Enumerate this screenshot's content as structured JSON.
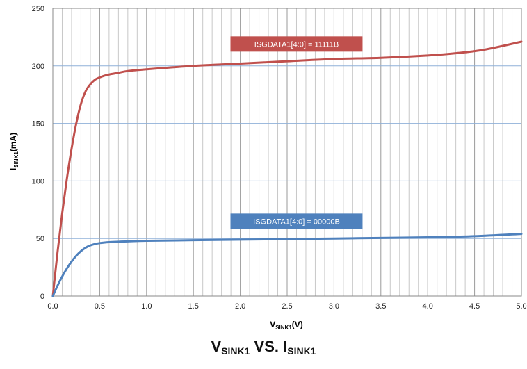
{
  "chart_data": {
    "type": "line",
    "title": {
      "v": "V",
      "v_sub": "SINK1",
      "vs": " VS. I",
      "i_sub": "SINK1"
    },
    "xlabel": {
      "main": "V",
      "sub": "SINK1",
      "unit": "(V)"
    },
    "ylabel": {
      "main": "I",
      "sub": "SINK1",
      "unit": "(mA)"
    },
    "xlim": [
      0,
      5
    ],
    "ylim": [
      0,
      250
    ],
    "x_ticks": [
      "0.0",
      "0.5",
      "1.0",
      "1.5",
      "2.0",
      "2.5",
      "3.0",
      "3.5",
      "4.0",
      "4.5",
      "5.0"
    ],
    "y_ticks": [
      "0",
      "50",
      "100",
      "150",
      "200",
      "250"
    ],
    "grid": true,
    "series": [
      {
        "name": "ISGDATA1[4:0] = 11111B",
        "color": "#c0504d",
        "x": [
          0,
          0.05,
          0.1,
          0.15,
          0.2,
          0.25,
          0.3,
          0.35,
          0.4,
          0.45,
          0.5,
          0.55,
          0.6,
          0.7,
          0.8,
          1.0,
          1.5,
          2.0,
          2.5,
          3.0,
          3.5,
          4.0,
          4.3,
          4.6,
          5.0
        ],
        "y": [
          0,
          38,
          72,
          102,
          128,
          150,
          167,
          178,
          184,
          188,
          190,
          191.5,
          192.5,
          194,
          195.5,
          197,
          200,
          202,
          204,
          206,
          207,
          209,
          211,
          214,
          221
        ]
      },
      {
        "name": "ISGDATA1[4:0] = 00000B",
        "color": "#4f81bd",
        "x": [
          0,
          0.05,
          0.1,
          0.15,
          0.2,
          0.25,
          0.3,
          0.35,
          0.4,
          0.45,
          0.5,
          0.6,
          0.7,
          0.8,
          1.0,
          1.5,
          2.0,
          2.5,
          3.0,
          3.5,
          4.0,
          4.5,
          5.0
        ],
        "y": [
          0,
          9,
          17,
          24,
          30,
          35,
          39,
          42,
          44,
          45.2,
          46,
          46.8,
          47.2,
          47.5,
          48,
          48.5,
          49,
          49.5,
          50,
          50.5,
          51,
          52,
          54
        ]
      }
    ],
    "annotations": [
      {
        "series": 0,
        "x": 2.6,
        "y": 219
      },
      {
        "series": 1,
        "x": 2.6,
        "y": 65
      }
    ]
  }
}
